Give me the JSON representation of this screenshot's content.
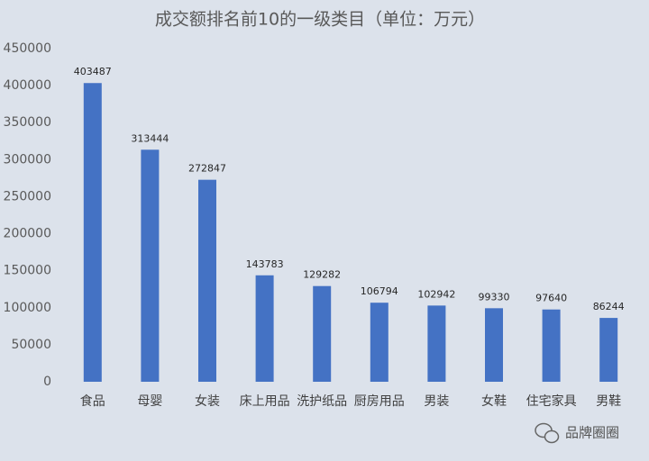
{
  "chart_data": {
    "type": "bar",
    "title": "成交额排名前10的一级类目（单位：万元）",
    "categories": [
      "食品",
      "母婴",
      "女装",
      "床上用品",
      "洗护纸品",
      "厨房用品",
      "男装",
      "女鞋",
      "住宅家具",
      "男鞋"
    ],
    "values": [
      403487,
      313444,
      272847,
      143783,
      129282,
      106794,
      102942,
      99330,
      97640,
      86244
    ],
    "color": "#4472c4",
    "ylim": [
      0,
      450000
    ],
    "yticks": [
      0,
      50000,
      100000,
      150000,
      200000,
      250000,
      300000,
      350000,
      400000,
      450000
    ],
    "grid": false,
    "data_labels": true,
    "watermark": "品牌圈圈"
  }
}
